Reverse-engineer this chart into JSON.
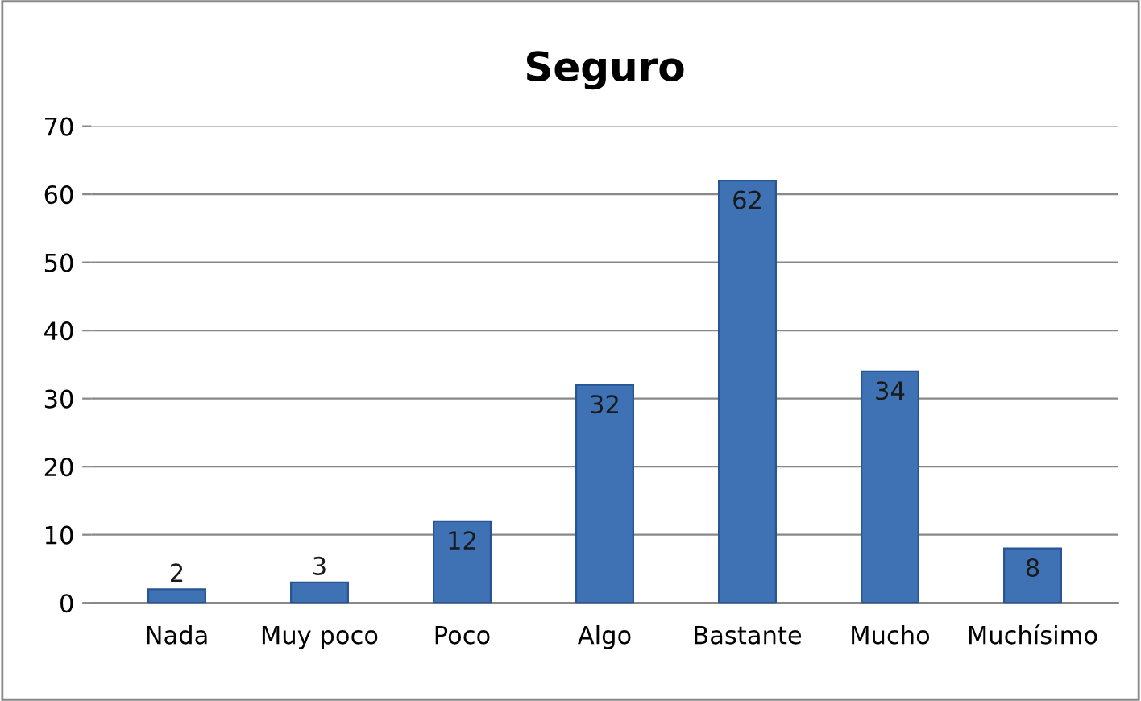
{
  "chart_data": {
    "type": "bar",
    "title": "Seguro",
    "categories": [
      "Nada",
      "Muy poco",
      "Poco",
      "Algo",
      "Bastante",
      "Mucho",
      "Muchísimo"
    ],
    "values": [
      2,
      3,
      12,
      32,
      62,
      34,
      8
    ],
    "color": "#3f71b5",
    "ylim": [
      0,
      70
    ],
    "yticks": [
      0,
      10,
      20,
      30,
      40,
      50,
      60,
      70
    ],
    "grid": "y",
    "data_labels": true
  }
}
